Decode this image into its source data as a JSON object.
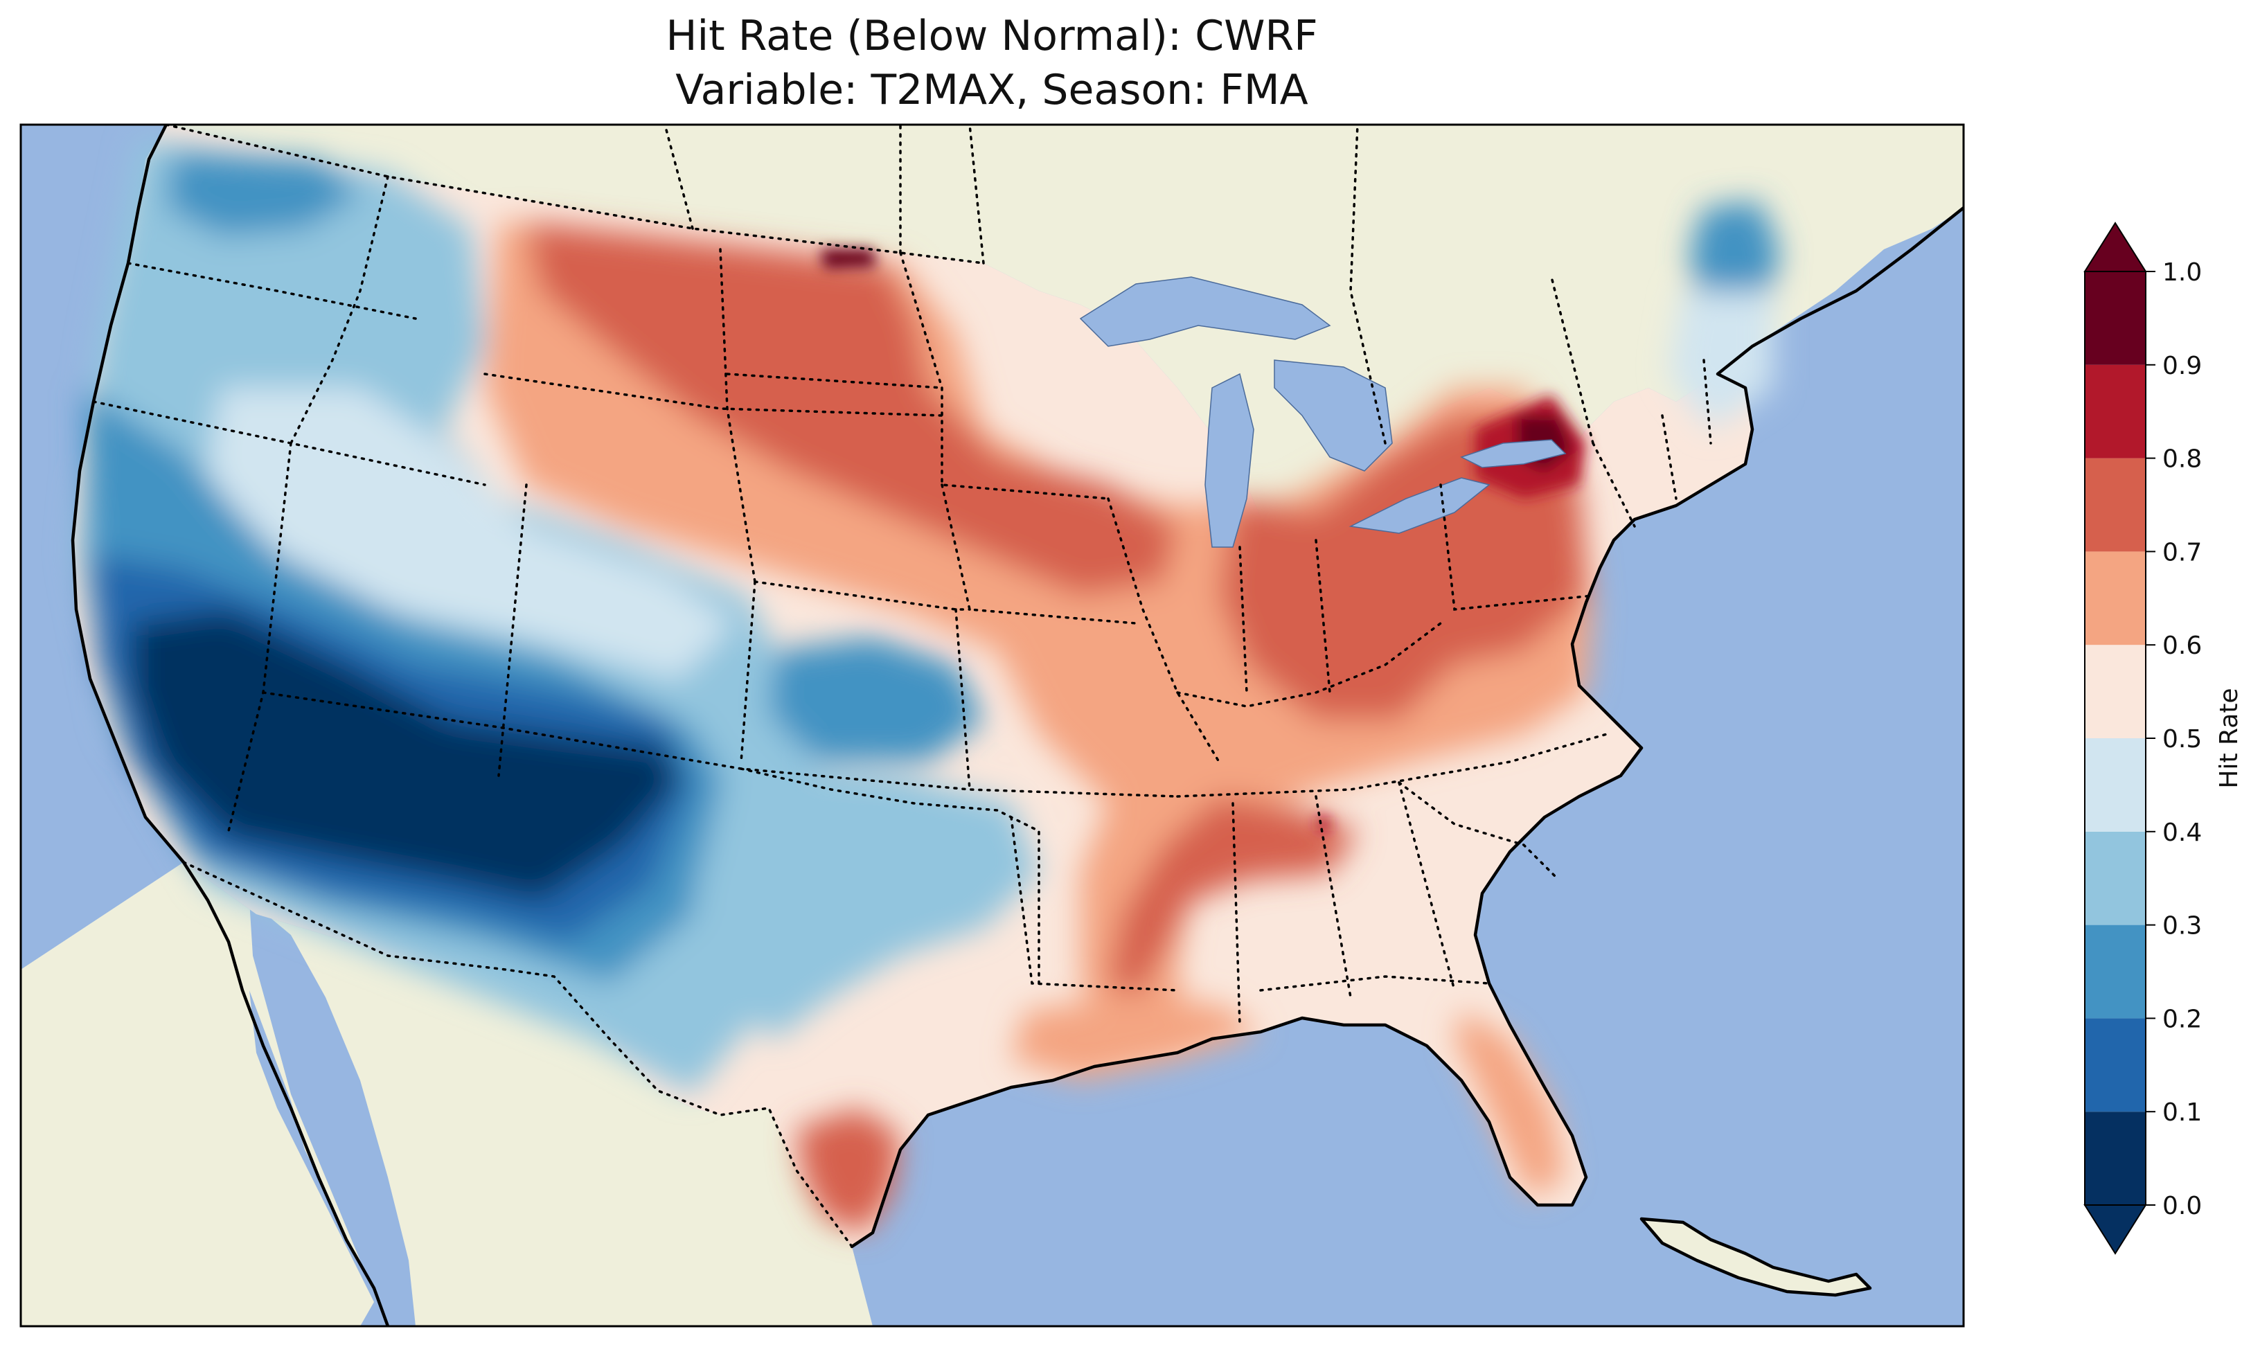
{
  "title": {
    "line1": "Hit Rate (Below Normal): CWRF",
    "line2": "Variable: T2MAX, Season: FMA"
  },
  "map": {
    "region": "Contiguous United States",
    "ocean_color": "#97b6e1",
    "land_color": "#efefdb",
    "lake_color": "#97b6e1"
  },
  "colorbar": {
    "label": "Hit Rate",
    "ticks": [
      "0.0",
      "0.1",
      "0.2",
      "0.3",
      "0.4",
      "0.5",
      "0.6",
      "0.7",
      "0.8",
      "0.9",
      "1.0"
    ],
    "bins": [
      {
        "range": [
          0.0,
          0.1
        ],
        "color": "#053061"
      },
      {
        "range": [
          0.1,
          0.2
        ],
        "color": "#2166ac"
      },
      {
        "range": [
          0.2,
          0.3
        ],
        "color": "#4393c3"
      },
      {
        "range": [
          0.3,
          0.4
        ],
        "color": "#92c5de"
      },
      {
        "range": [
          0.4,
          0.5
        ],
        "color": "#d1e5f0"
      },
      {
        "range": [
          0.5,
          0.6
        ],
        "color": "#fae7dc"
      },
      {
        "range": [
          0.6,
          0.7
        ],
        "color": "#f4a582"
      },
      {
        "range": [
          0.7,
          0.8
        ],
        "color": "#d6604d"
      },
      {
        "range": [
          0.8,
          0.9
        ],
        "color": "#b2182b"
      },
      {
        "range": [
          0.9,
          1.0
        ],
        "color": "#67001f"
      }
    ],
    "extend": "both"
  },
  "regions": [
    {
      "name": "Southwest (CA, NV, AZ, NM)",
      "value_range": [
        0.0,
        0.1
      ]
    },
    {
      "name": "Pacific coast / Great Basin",
      "value_range": [
        0.1,
        0.3
      ]
    },
    {
      "name": "Pacific Northwest",
      "value_range": [
        0.2,
        0.4
      ]
    },
    {
      "name": "Maine",
      "value_range": [
        0.2,
        0.3
      ]
    },
    {
      "name": "Northern Plains",
      "value_range": [
        0.7,
        0.8
      ]
    },
    {
      "name": "Central Plains / Midwest",
      "value_range": [
        0.6,
        0.8
      ]
    },
    {
      "name": "Ohio Valley / Pennsylvania",
      "value_range": [
        0.7,
        0.8
      ]
    },
    {
      "name": "Western New York",
      "value_range": [
        0.8,
        1.0
      ]
    },
    {
      "name": "Lower Mississippi Valley",
      "value_range": [
        0.6,
        0.8
      ]
    },
    {
      "name": "South Texas",
      "value_range": [
        0.7,
        0.8
      ]
    },
    {
      "name": "Southeast",
      "value_range": [
        0.5,
        0.6
      ]
    },
    {
      "name": "Florida Peninsula",
      "value_range": [
        0.6,
        0.7
      ]
    }
  ]
}
